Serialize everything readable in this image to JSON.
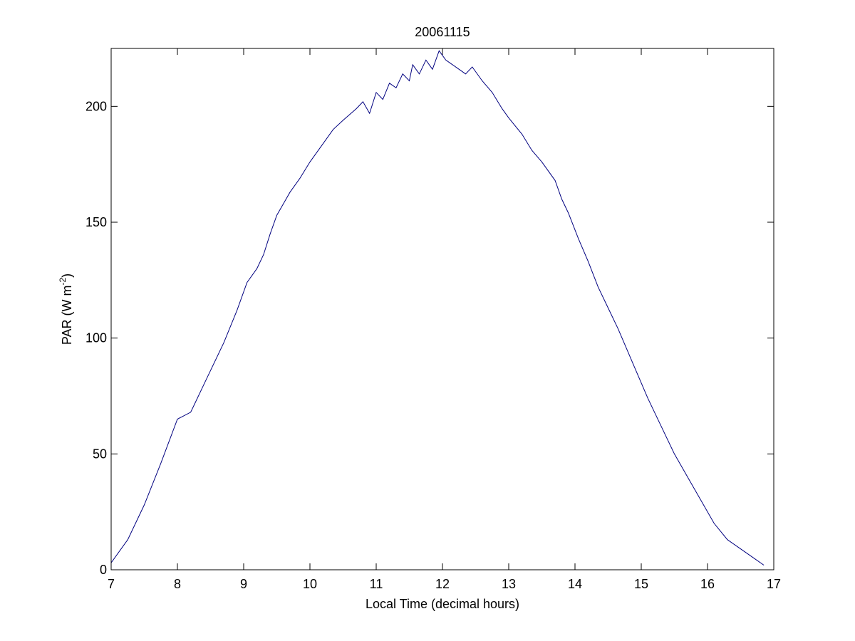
{
  "chart_data": {
    "type": "line",
    "title": "20061115",
    "xlabel": "Local Time (decimal hours)",
    "ylabel_main": "PAR (W m",
    "ylabel_sup": "-2",
    "ylabel_close": ")",
    "xlim": [
      7,
      17
    ],
    "ylim": [
      0,
      225
    ],
    "xticks": [
      7,
      8,
      9,
      10,
      11,
      12,
      13,
      14,
      15,
      16,
      17
    ],
    "yticks": [
      0,
      50,
      100,
      150,
      200
    ],
    "grid": false,
    "line_color": "#00007f",
    "series": [
      {
        "x": [
          7.0,
          7.25,
          7.5,
          7.75,
          8.0,
          8.2,
          8.25,
          8.4,
          8.5,
          8.7,
          8.9,
          9.05,
          9.2,
          9.3,
          9.4,
          9.5,
          9.6,
          9.7,
          9.85,
          10.0,
          10.2,
          10.35,
          10.5,
          10.7,
          10.8,
          10.9,
          11.0,
          11.1,
          11.2,
          11.3,
          11.4,
          11.5,
          11.55,
          11.65,
          11.75,
          11.85,
          11.95,
          12.05,
          12.15,
          12.25,
          12.35,
          12.45,
          12.6,
          12.75,
          12.9,
          13.0,
          13.2,
          13.35,
          13.5,
          13.7,
          13.8,
          13.9,
          14.05,
          14.2,
          14.35,
          14.5,
          14.65,
          14.8,
          14.95,
          15.1,
          15.3,
          15.5,
          15.7,
          15.9,
          16.1,
          16.3,
          16.5,
          16.7,
          16.85
        ],
        "y": [
          3,
          13,
          28,
          46,
          65,
          68,
          71,
          80,
          86,
          98,
          112,
          124,
          130,
          136,
          145,
          153,
          158,
          163,
          169,
          176,
          184,
          190,
          194,
          199,
          202,
          197,
          206,
          203,
          210,
          208,
          214,
          211,
          218,
          214,
          220,
          216,
          224,
          220,
          218,
          216,
          214,
          217,
          211,
          206,
          199,
          195,
          188,
          181,
          176,
          168,
          160,
          154,
          143,
          133,
          122,
          113,
          104,
          94,
          84,
          74,
          62,
          50,
          40,
          30,
          20,
          13,
          9,
          5,
          2
        ]
      }
    ]
  }
}
